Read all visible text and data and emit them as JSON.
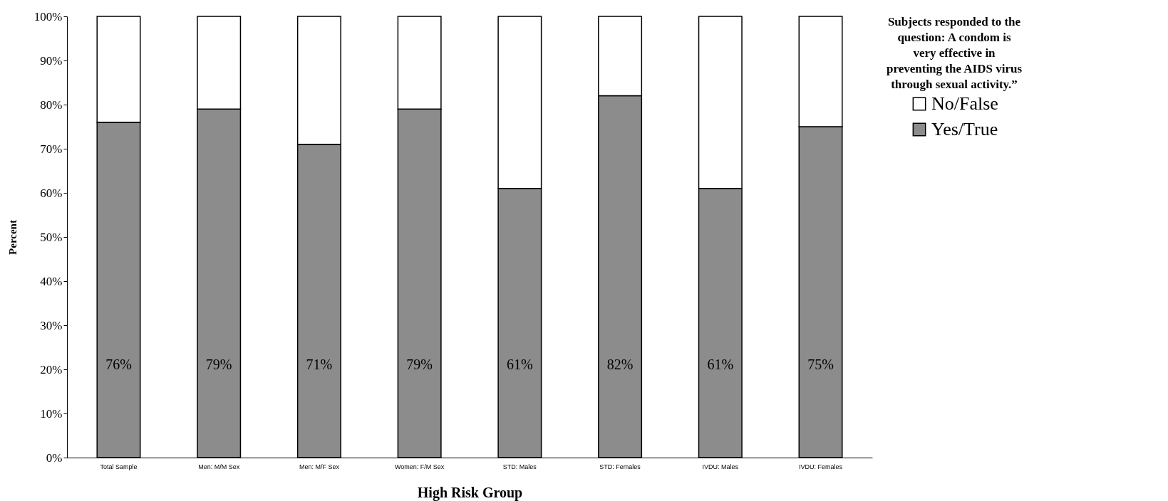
{
  "chart_data": {
    "type": "bar",
    "stacked": true,
    "xlabel": "High Risk Group",
    "ylabel": "Percent",
    "legend_title": "Subjects responded to the question: A condom is very effective in preventing the AIDS virus through sexual activity.”",
    "categories": [
      "Total Sample",
      "Men: M/M Sex",
      "Men:    M/F Sex",
      "Women: F/M Sex",
      "STD: Males",
      "STD: Females",
      "IVDU: Males",
      "IVDU: Females"
    ],
    "series": [
      {
        "name": "Yes/True",
        "color": "#8c8c8c",
        "values": [
          76,
          79,
          71,
          79,
          61,
          82,
          61,
          75
        ],
        "value_labels": [
          "76%",
          "79%",
          "71%",
          "79%",
          "61%",
          "82%",
          "61%",
          "75%"
        ]
      },
      {
        "name": "No/False",
        "color": "#ffffff",
        "values": [
          24,
          21,
          29,
          21,
          39,
          18,
          39,
          25
        ]
      }
    ],
    "ylim": [
      0,
      100
    ],
    "yticks": [
      {
        "value": 0,
        "label": "0%"
      },
      {
        "value": 10,
        "label": "10%"
      },
      {
        "value": 20,
        "label": "20%"
      },
      {
        "value": 30,
        "label": "30%"
      },
      {
        "value": 40,
        "label": "40%"
      },
      {
        "value": 50,
        "label": "50%"
      },
      {
        "value": 60,
        "label": "60%"
      },
      {
        "value": 70,
        "label": "70%"
      },
      {
        "value": 80,
        "label": "80%"
      },
      {
        "value": 90,
        "label": "90%"
      },
      {
        "value": 100,
        "label": "100%"
      }
    ],
    "grid": false,
    "legend": "right"
  }
}
